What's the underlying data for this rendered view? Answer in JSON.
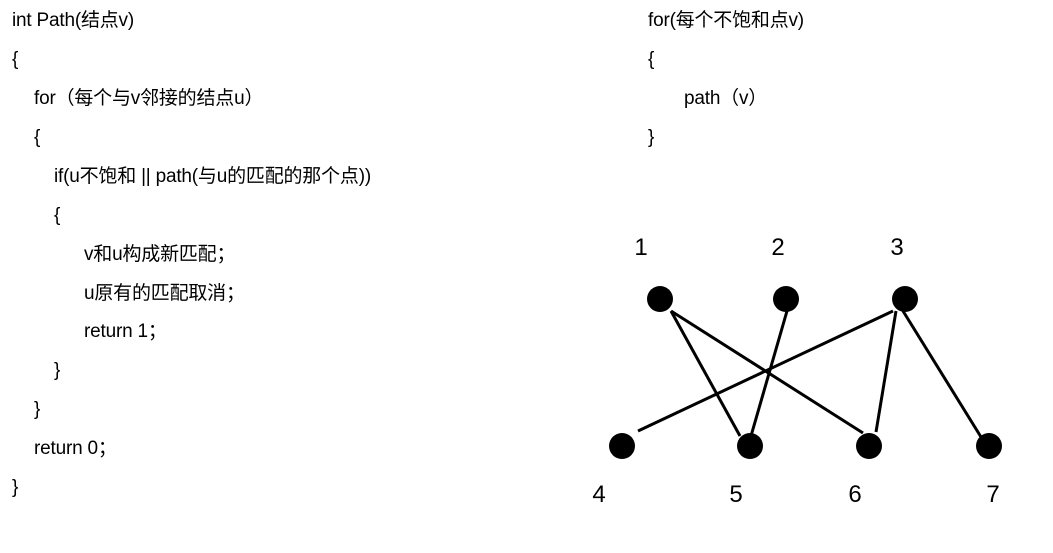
{
  "left_code": {
    "lines": [
      "int Path(结点v)",
      "{",
      "for（每个与v邻接的结点u）",
      "{",
      "if(u不饱和 || path(与u的匹配的那个点))",
      "{",
      "v和u构成新匹配；",
      "u原有的匹配取消；",
      "return 1；",
      "}",
      "}",
      "return 0；",
      "}"
    ]
  },
  "right_code": {
    "lines": [
      "for(每个不饱和点v)",
      "{",
      "path（v）",
      "}"
    ]
  },
  "graph": {
    "top_nodes": [
      "1",
      "2",
      "3"
    ],
    "bottom_nodes": [
      "4",
      "5",
      "6",
      "7"
    ],
    "edges": [
      [
        "1",
        "5"
      ],
      [
        "1",
        "6"
      ],
      [
        "2",
        "5"
      ],
      [
        "3",
        "4"
      ],
      [
        "3",
        "6"
      ],
      [
        "3",
        "7"
      ]
    ],
    "node_color": "#000000",
    "edge_color": "#000000"
  }
}
